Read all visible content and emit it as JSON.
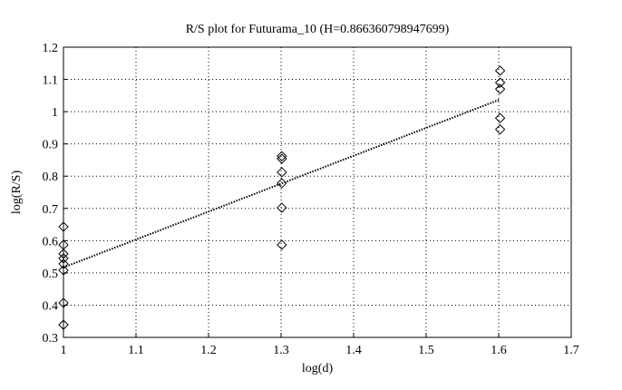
{
  "chart_data": {
    "type": "scatter",
    "title": "R/S plot for Futurama_10 (H=0.866360798947699)",
    "xlabel": "log(d)",
    "ylabel": "log(R/S)",
    "xlim": [
      1,
      1.7
    ],
    "xticks": [
      1,
      1.1,
      1.2,
      1.3,
      1.4,
      1.5,
      1.6,
      1.7
    ],
    "ylim": [
      0.3,
      1.2
    ],
    "yticks": [
      0.3,
      0.4,
      0.5,
      0.6,
      0.7,
      0.8,
      0.9,
      1,
      1.1,
      1.2
    ],
    "grid": true,
    "series": [
      {
        "type": "scatter",
        "marker": "diamond",
        "color": "#000000",
        "x": [
          1,
          1,
          1,
          1,
          1,
          1,
          1,
          1,
          1.301,
          1.301,
          1.301,
          1.301,
          1.301,
          1.301,
          1.602,
          1.602,
          1.602,
          1.602,
          1.602
        ],
        "values": [
          0.643,
          0.587,
          0.559,
          0.545,
          0.528,
          0.508,
          0.407,
          0.339,
          0.862,
          0.854,
          0.812,
          0.778,
          0.702,
          0.587,
          1.127,
          1.09,
          1.07,
          0.98,
          0.945
        ]
      },
      {
        "type": "line",
        "linestyle": "dotted",
        "color": "#000000",
        "x": [
          1,
          1.602
        ],
        "values": [
          0.517,
          1.038
        ]
      }
    ]
  }
}
